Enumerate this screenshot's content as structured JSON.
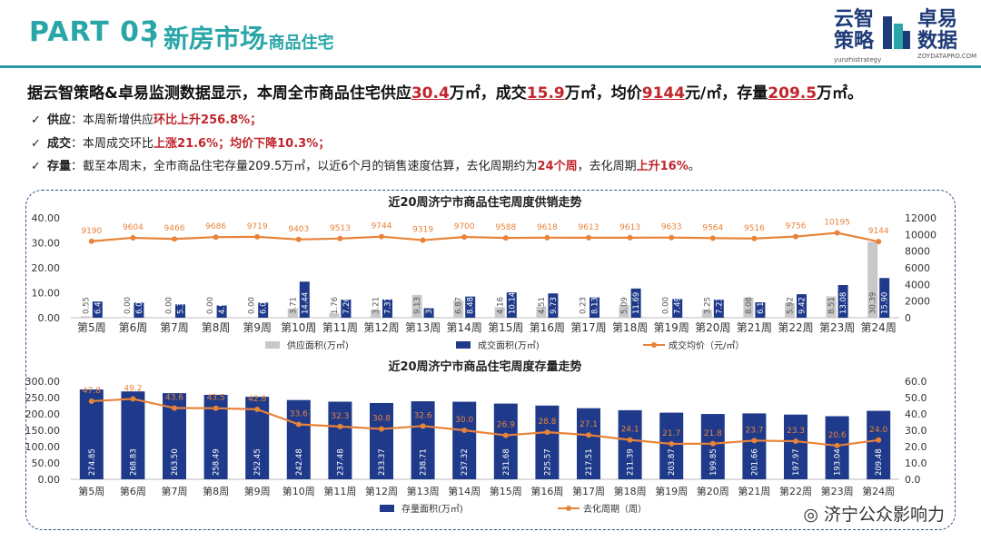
{
  "header": {
    "part": "PART 03",
    "separator": "|",
    "title": "新房市场",
    "subtitle": "-商品住宅",
    "logo_left": [
      "云智",
      "策略"
    ],
    "logo_right": [
      "卓易",
      "数据"
    ],
    "logo_url_left": "yunzhistrategy",
    "logo_url_right": "ZOYDATAPRO.COM"
  },
  "summary": {
    "p1": "据云智策略&卓易监测数据显示，本周全市商品住宅供应",
    "v1": "30.4",
    "p2": "万㎡，成交",
    "v2": "15.9",
    "p3": "万㎡，均价",
    "v3": "9144",
    "p4": "元/㎡，存量",
    "v4": "209.5",
    "p5": "万㎡。"
  },
  "bullets": [
    {
      "key": "供应",
      "text": "：本周新增供应",
      "red": "环比上升256.8%；",
      "rest": "",
      "red2": "",
      "tail": ""
    },
    {
      "key": "成交",
      "text": "：本周成交环比",
      "red": "上涨21.6%；均价下降10.3%；",
      "rest": "",
      "red2": "",
      "tail": ""
    },
    {
      "key": "存量",
      "text": "：截至本周末，全市商品住宅存量209.5万㎡，以近6个月的销售速度估算，去化周期约为",
      "red": "24个周",
      "rest": "，去化周期",
      "red2": "上升16%",
      "tail": "。"
    }
  ],
  "watermark": "济宁公众影响力",
  "chart_data": [
    {
      "type": "bar",
      "title": "近20周济宁市商品住宅周度供销走势",
      "categories": [
        "第5周",
        "第6周",
        "第7周",
        "第8周",
        "第9周",
        "第10周",
        "第11周",
        "第12周",
        "第13周",
        "第14周",
        "第15周",
        "第16周",
        "第17周",
        "第18周",
        "第19周",
        "第20周",
        "第21周",
        "第22周",
        "第23周",
        "第24周"
      ],
      "ylim": [
        0,
        40
      ],
      "yticks": [
        "0.00",
        "10.00",
        "20.00",
        "30.00",
        "40.00"
      ],
      "y2lim": [
        0,
        12000
      ],
      "y2ticks": [
        "0",
        "2000",
        "4000",
        "6000",
        "8000",
        "10000",
        "12000"
      ],
      "series": [
        {
          "name": "供应面积(万㎡)",
          "type": "bar",
          "color": "#c8c8c8",
          "values": [
            0.55,
            0.0,
            0.0,
            0.0,
            0.0,
            3.71,
            1.76,
            3.21,
            9.13,
            6.87,
            4.16,
            4.51,
            0.23,
            5.09,
            0.0,
            3.25,
            8.08,
            5.92,
            8.51,
            30.39
          ],
          "labels": [
            "0.55",
            "0.00",
            "0.00",
            "0.00",
            "0.00",
            "3.71",
            "1.76",
            "3.21",
            "9.13",
            "6.87",
            "4.16",
            "4.51",
            "0.23",
            "5.09",
            "0.00",
            "3.25",
            "8.08",
            "5.92",
            "8.51",
            "30.39"
          ]
        },
        {
          "name": "成交面积(万㎡)",
          "type": "bar",
          "color": "#1f3a8a",
          "values": [
            6.47,
            6.02,
            5.33,
            4.9,
            6.02,
            14.44,
            7.26,
            7.31,
            3.8,
            8.48,
            10.14,
            9.73,
            8.13,
            11.69,
            7.49,
            7.23,
            6.16,
            9.42,
            13.08,
            15.9
          ],
          "labels": [
            "6.47",
            "6.02",
            "5.33",
            "4.90",
            "6.02",
            "14.44",
            "7.26",
            "7.31",
            "3.8",
            "8.48",
            "10.14",
            "9.73",
            "8.13",
            "11.69",
            "7.49",
            "7.23",
            "6.16",
            "9.42",
            "13.08",
            "15.90"
          ]
        },
        {
          "name": "成交均价（元/㎡）",
          "type": "line",
          "axis": "right",
          "color": "#e8833a",
          "values": [
            9190,
            9604,
            9466,
            9686,
            9719,
            9403,
            9513,
            9744,
            9319,
            9700,
            9588,
            9618,
            9613,
            9613,
            9633,
            9564,
            9516,
            9756,
            10195,
            9144
          ],
          "labels": [
            "9190",
            "9604",
            "9466",
            "9686",
            "9719",
            "9403",
            "9513",
            "9744",
            "9319",
            "9700",
            "9588",
            "9618",
            "9613",
            "9613",
            "9633",
            "9564",
            "9516",
            "9756",
            "10195",
            "9144"
          ]
        }
      ]
    },
    {
      "type": "bar",
      "title": "近20周济宁市商品住宅周度存量走势",
      "categories": [
        "第5周",
        "第6周",
        "第7周",
        "第8周",
        "第9周",
        "第10周",
        "第11周",
        "第12周",
        "第13周",
        "第14周",
        "第15周",
        "第16周",
        "第17周",
        "第18周",
        "第19周",
        "第20周",
        "第21周",
        "第22周",
        "第23周",
        "第24周"
      ],
      "ylim": [
        0,
        300
      ],
      "yticks": [
        "0.00",
        "50.00",
        "100.00",
        "150.00",
        "200.00",
        "250.00",
        "300.00"
      ],
      "y2lim": [
        0,
        60
      ],
      "y2ticks": [
        "0.0",
        "10.0",
        "20.0",
        "30.0",
        "40.0",
        "50.0",
        "60.0"
      ],
      "series": [
        {
          "name": "存量面积(万㎡)",
          "type": "bar",
          "color": "#1f3a8a",
          "values": [
            274.85,
            268.83,
            263.5,
            258.49,
            252.45,
            242.48,
            237.48,
            233.37,
            238.71,
            237.32,
            231.68,
            225.57,
            217.51,
            211.39,
            203.87,
            199.85,
            201.66,
            197.97,
            193.04,
            209.48
          ],
          "labels": [
            "274.85",
            "268.83",
            "263.50",
            "258.49",
            "252.45",
            "242.48",
            "237.48",
            "233.37",
            "238.71",
            "237.32",
            "231.68",
            "225.57",
            "217.51",
            "211.39",
            "203.87",
            "199.85",
            "201.66",
            "197.97",
            "193.04",
            "209.48"
          ]
        },
        {
          "name": "去化周期（周）",
          "type": "line",
          "axis": "right",
          "color": "#e8833a",
          "values": [
            47.8,
            49.2,
            43.6,
            43.5,
            42.8,
            33.6,
            32.3,
            30.8,
            32.6,
            30.0,
            26.9,
            28.8,
            27.1,
            24.1,
            21.7,
            21.8,
            23.7,
            23.3,
            20.6,
            24.0
          ],
          "labels": [
            "47.8",
            "49.2",
            "43.6",
            "43.5",
            "42.8",
            "33.6",
            "32.3",
            "30.8",
            "32.6",
            "30.0",
            "26.9",
            "28.8",
            "27.1",
            "24.1",
            "21.7",
            "21.8",
            "23.7",
            "23.3",
            "20.6",
            "24.0"
          ]
        }
      ]
    }
  ]
}
